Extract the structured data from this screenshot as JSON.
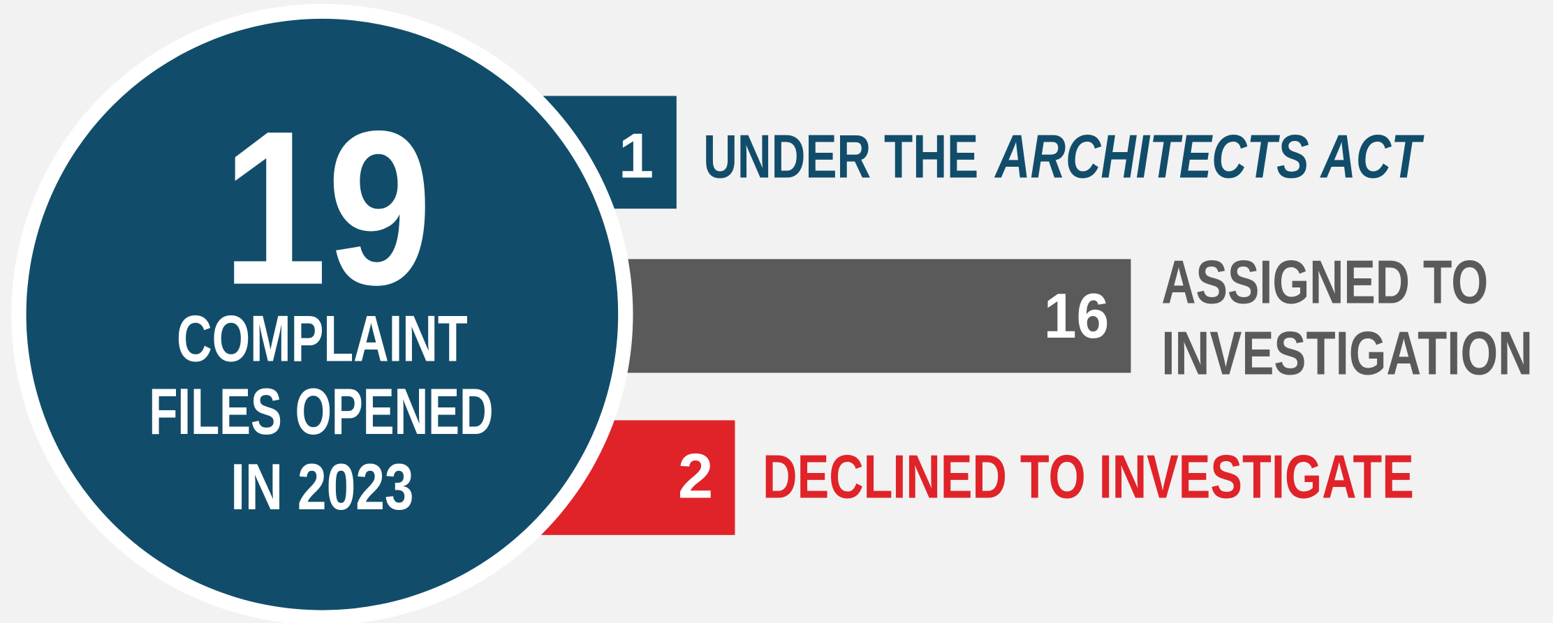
{
  "total": {
    "value": 19,
    "lines": [
      "COMPLAINT",
      "FILES OPENED",
      "IN 2023"
    ]
  },
  "items": [
    {
      "value": 1,
      "label": "UNDER THE",
      "label_italic": "ARCHITECTS ACT"
    },
    {
      "value": 16,
      "lines": [
        "ASSIGNED TO",
        "INVESTIGATION"
      ]
    },
    {
      "value": 2,
      "label": "DECLINED TO INVESTIGATE"
    }
  ]
}
